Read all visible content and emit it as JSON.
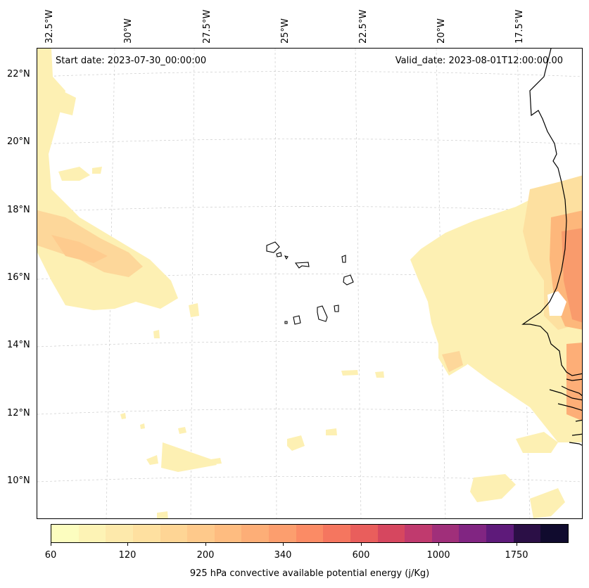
{
  "map": {
    "start_date": "Start date: 2023-07-30_00:00:00",
    "valid_date": "Valid_date: 2023-08-01T12:00:00.00",
    "lon_labels": [
      "32.5°W",
      "30°W",
      "27.5°W",
      "25°W",
      "22.5°W",
      "20°W",
      "17.5°W"
    ],
    "lat_labels": [
      "22°N",
      "20°N",
      "18°N",
      "16°N",
      "14°N",
      "12°N",
      "10°N"
    ],
    "gridlines": true,
    "coastline_color": "#000000"
  },
  "colorbar": {
    "label": "925 hPa convective available potential energy (j/Kg)",
    "tick_labels": [
      "60",
      "120",
      "200",
      "340",
      "600",
      "1000",
      "1750"
    ],
    "colors": [
      "#fcfdbf",
      "#fdf3b5",
      "#fde9ab",
      "#fee0a0",
      "#fed595",
      "#fec98b",
      "#febc80",
      "#fdae77",
      "#fc9e6e",
      "#fb8b65",
      "#f5765f",
      "#e95e5c",
      "#d6475f",
      "#c03a6e",
      "#a02f7a",
      "#812582",
      "#5e1a7a",
      "#2b0f46",
      "#100b2e"
    ]
  }
}
